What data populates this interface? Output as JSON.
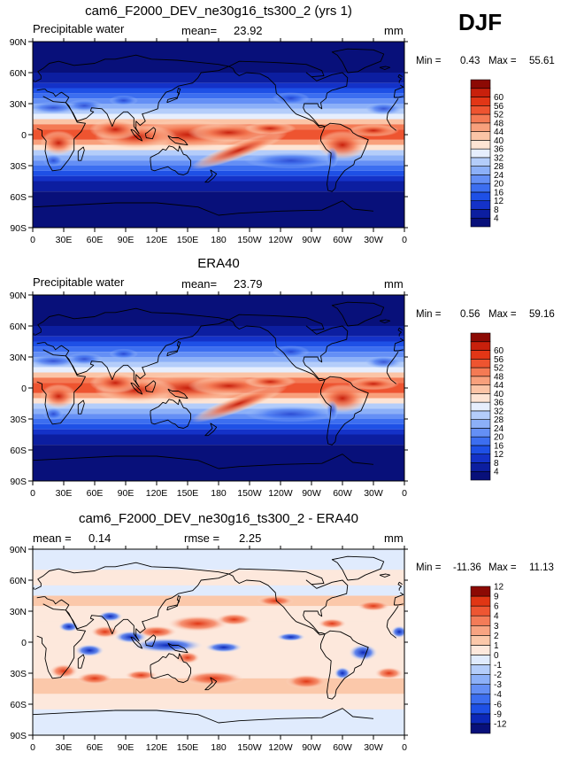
{
  "season": "DJF",
  "x_ticks": [
    "0",
    "30E",
    "60E",
    "90E",
    "120E",
    "150E",
    "180",
    "150W",
    "120W",
    "90W",
    "60W",
    "30W",
    "0"
  ],
  "y_ticks": [
    "90N",
    "60N",
    "30N",
    "0",
    "30S",
    "60S",
    "90S"
  ],
  "colors": {
    "pw": [
      "#08107a",
      "#0c1ea0",
      "#1432c8",
      "#1e50e6",
      "#3c6ef0",
      "#648ff5",
      "#8cb0f8",
      "#b4cdfa",
      "#e6eefd",
      "#fde4d4",
      "#fbc4a6",
      "#f8a07c",
      "#f47a54",
      "#ee5430",
      "#e23616",
      "#c8200c",
      "#8c0a04"
    ],
    "diff": [
      "#08107a",
      "#0c28b8",
      "#1e50e6",
      "#3c6ef0",
      "#648ff5",
      "#8cb0f8",
      "#b4cdfa",
      "#e0ebfd",
      "#fde8dc",
      "#fbc8aa",
      "#f8a482",
      "#f47c58",
      "#ee5632",
      "#e03614",
      "#8c0a04"
    ],
    "land_outline": "#000000"
  },
  "chart_data": [
    {
      "type": "heatmap",
      "title": "cam6_F2000_DEV_ne30g16_ts300_2 (yrs 1)",
      "variable": "Precipitable water",
      "mean_label": "mean=",
      "mean": "23.92",
      "units": "mm",
      "min_label": "Min =",
      "min": "0.43",
      "max_label": "Max =",
      "max": "55.61",
      "xlim": [
        0,
        360
      ],
      "ylim": [
        -90,
        90
      ],
      "levels": [
        "4",
        "8",
        "12",
        "16",
        "20",
        "24",
        "28",
        "32",
        "36",
        "40",
        "44",
        "48",
        "52",
        "56",
        "60"
      ],
      "palette": "pw"
    },
    {
      "type": "heatmap",
      "title": "ERA40",
      "variable": "Precipitable water",
      "mean_label": "mean=",
      "mean": "23.79",
      "units": "mm",
      "min_label": "Min =",
      "min": "0.56",
      "max_label": "Max =",
      "max": "59.16",
      "xlim": [
        0,
        360
      ],
      "ylim": [
        -90,
        90
      ],
      "levels": [
        "4",
        "8",
        "12",
        "16",
        "20",
        "24",
        "28",
        "32",
        "36",
        "40",
        "44",
        "48",
        "52",
        "56",
        "60"
      ],
      "palette": "pw"
    },
    {
      "type": "heatmap",
      "title": "cam6_F2000_DEV_ne30g16_ts300_2 - ERA40",
      "mean_label": "mean =",
      "mean": "0.14",
      "rmse_label": "rmse =",
      "rmse": "2.25",
      "units": "mm",
      "min_label": "Min =",
      "min": "-11.36",
      "max_label": "Max =",
      "max": "11.13",
      "xlim": [
        0,
        360
      ],
      "ylim": [
        -90,
        90
      ],
      "levels": [
        "-12",
        "-9",
        "-6",
        "-4",
        "-3",
        "-2",
        "-1",
        "0",
        "1",
        "2",
        "3",
        "4",
        "6",
        "9",
        "12"
      ],
      "palette": "diff"
    }
  ]
}
